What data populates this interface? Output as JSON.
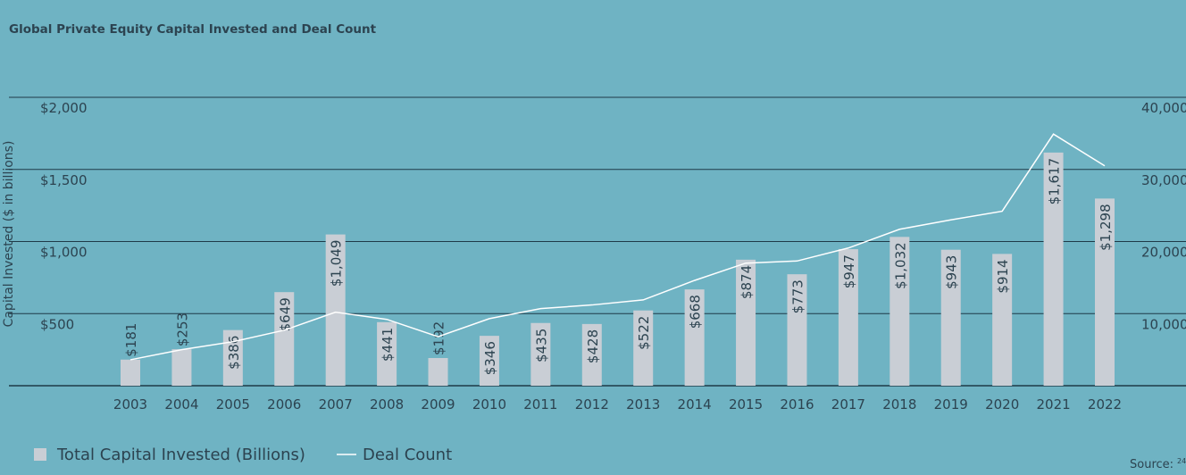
{
  "chart_data": {
    "type": "bar",
    "title": "Global Private Equity Capital Invested and Deal Count",
    "y_label": "Capital Invested ($ in billions)",
    "source": "Source:",
    "source_note": "24",
    "categories": [
      "2003",
      "2004",
      "2005",
      "2006",
      "2007",
      "2008",
      "2009",
      "2010",
      "2011",
      "2012",
      "2013",
      "2014",
      "2015",
      "2016",
      "2017",
      "2018",
      "2019",
      "2020",
      "2021",
      "2022"
    ],
    "series": [
      {
        "name": "Total Capital Invested (Billions)",
        "color": "#c9ced5",
        "values": [
          181,
          253,
          386,
          649,
          1049,
          441,
          192,
          346,
          435,
          428,
          522,
          668,
          874,
          773,
          947,
          1032,
          943,
          914,
          1617,
          1298
        ],
        "value_labels": [
          "$181",
          "$253",
          "$386",
          "$649",
          "$1,049",
          "$441",
          "$192",
          "$346",
          "$435",
          "$428",
          "$522",
          "$668",
          "$874",
          "$773",
          "$947",
          "$1,032",
          "$943",
          "$914",
          "$1,617",
          "$1,298"
        ]
      },
      {
        "name": "Deal Count",
        "color": "#ffffff",
        "axis": "y2",
        "values": [
          3600,
          5000,
          6100,
          7700,
          10200,
          9200,
          6800,
          9300,
          10700,
          11200,
          11900,
          14600,
          17000,
          17300,
          19100,
          21700,
          23000,
          24200,
          34900,
          30500
        ]
      }
    ],
    "ylim": [
      0,
      2000
    ],
    "yticks": [
      {
        "value": 500,
        "label": "$500"
      },
      {
        "value": 1000,
        "label": "$1,000"
      },
      {
        "value": 1500,
        "label": "$1,500"
      },
      {
        "value": 2000,
        "label": "$2,000"
      }
    ],
    "y2lim": [
      0,
      40000
    ],
    "y2ticks": [
      {
        "value": 10000,
        "label": "10,000"
      },
      {
        "value": 20000,
        "label": "20,000"
      },
      {
        "value": 30000,
        "label": "30,000"
      },
      {
        "value": 40000,
        "label": "40,000"
      }
    ],
    "grid": true
  }
}
